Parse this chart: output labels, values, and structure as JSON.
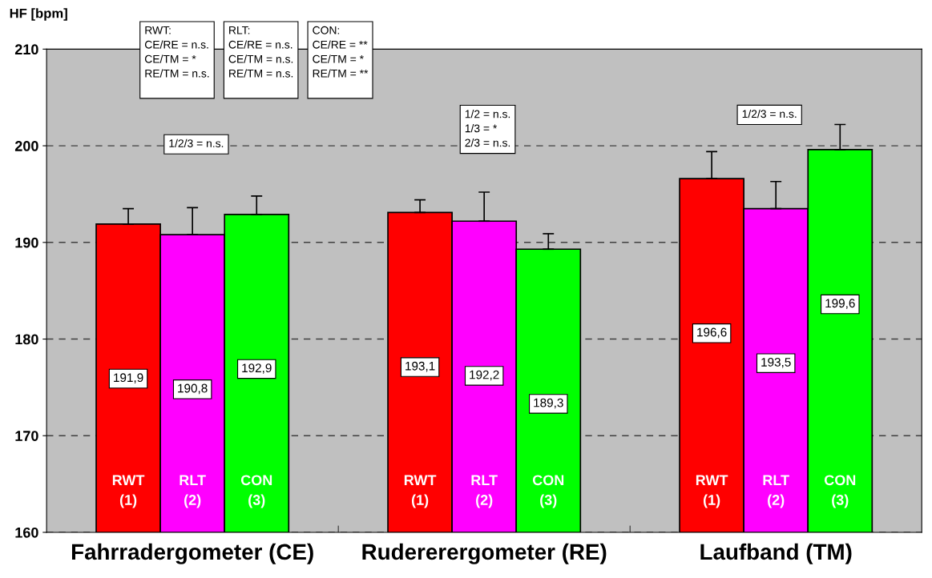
{
  "chart_data": {
    "type": "bar",
    "ylabel": "HF [bpm]",
    "categories": [
      "Fahrradergometer (CE)",
      "Rudererergometer (RE)",
      "Laufband (TM)"
    ],
    "series": [
      {
        "name": "RWT\n(1)",
        "color": "#ff0000",
        "values": [
          191.9,
          193.1,
          196.6
        ],
        "value_labels": [
          "191,9",
          "193,1",
          "196,6"
        ],
        "errors": [
          [
            191.9,
            193.5
          ],
          [
            193.1,
            194.4
          ],
          [
            196.6,
            199.4
          ]
        ]
      },
      {
        "name": "RLT\n(2)",
        "color": "#ff00ff",
        "values": [
          190.8,
          192.2,
          193.5
        ],
        "value_labels": [
          "190,8",
          "192,2",
          "193,5"
        ],
        "errors": [
          [
            190.8,
            193.6
          ],
          [
            192.2,
            195.2
          ],
          [
            193.5,
            196.3
          ]
        ]
      },
      {
        "name": "CON\n(3)",
        "color": "#00ff00",
        "values": [
          192.9,
          189.3,
          199.6
        ],
        "value_labels": [
          "192,9",
          "189,3",
          "199,6"
        ],
        "errors": [
          [
            192.9,
            194.8
          ],
          [
            189.3,
            190.9
          ],
          [
            199.6,
            202.2
          ]
        ]
      }
    ],
    "ylim": [
      160,
      210
    ],
    "yticks": [
      160,
      170,
      180,
      190,
      200,
      210
    ],
    "grid": "y",
    "legend": false,
    "annotations": [
      "RWT:\nCE/RE = n.s.\nCE/TM = *\nRE/TM = n.s.",
      "RLT:\nCE/RE = n.s.\nCE/TM = n.s.\nRE/TM = n.s.",
      "CON:\nCE/RE = **\nCE/TM = *\nRE/TM = **",
      "1/2/3 = n.s.",
      "1/2 = n.s.\n1/3 = *\n2/3 = n.s.",
      "1/2/3 = n.s."
    ]
  }
}
